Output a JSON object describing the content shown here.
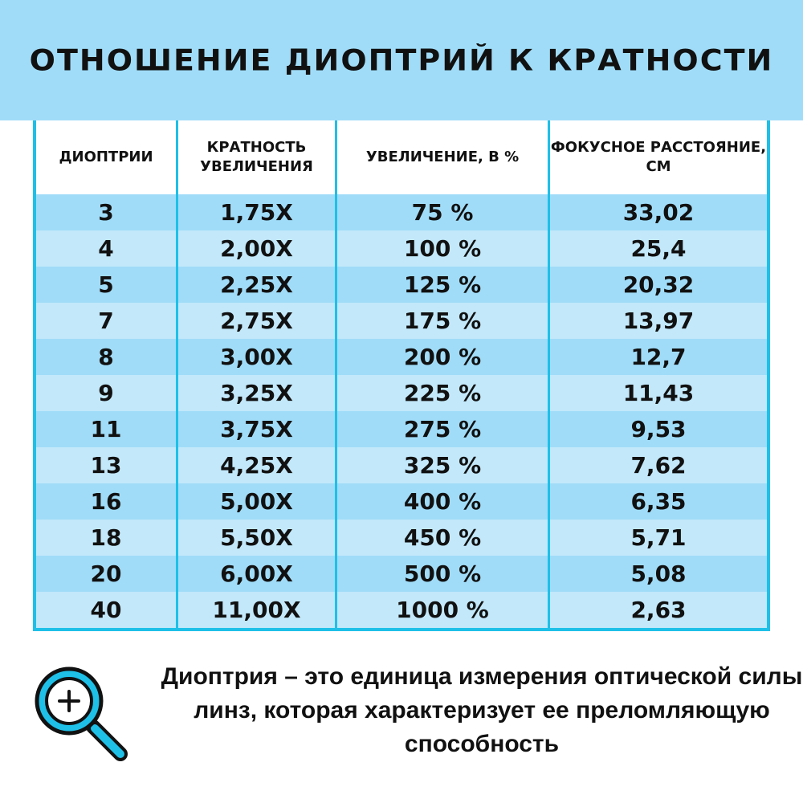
{
  "title": "ОТНОШЕНИЕ ДИОПТРИЙ К КРАТНОСТИ",
  "table": {
    "headers": [
      "ДИОПТРИИ",
      "КРАТНОСТЬ УВЕЛИЧЕНИЯ",
      "УВЕЛИЧЕНИЕ, В %",
      "ФОКУСНОЕ РАССТОЯНИЕ, СМ"
    ],
    "rows": [
      [
        "3",
        "1,75X",
        "75 %",
        "33,02"
      ],
      [
        "4",
        "2,00X",
        "100 %",
        "25,4"
      ],
      [
        "5",
        "2,25X",
        "125 %",
        "20,32"
      ],
      [
        "7",
        "2,75X",
        "175 %",
        "13,97"
      ],
      [
        "8",
        "3,00X",
        "200 %",
        "12,7"
      ],
      [
        "9",
        "3,25X",
        "225 %",
        "11,43"
      ],
      [
        "11",
        "3,75X",
        "275 %",
        "9,53"
      ],
      [
        "13",
        "4,25X",
        "325 %",
        "7,62"
      ],
      [
        "16",
        "5,00X",
        "400 %",
        "6,35"
      ],
      [
        "18",
        "5,50X",
        "450 %",
        "5,71"
      ],
      [
        "20",
        "6,00X",
        "500 %",
        "5,08"
      ],
      [
        "40",
        "11,00X",
        "1000 %",
        "2,63"
      ]
    ]
  },
  "note": "Диоптрия – это единица измерения оптической силы линз, которая характеризует ее преломляющую способность",
  "icon": "magnifier-plus-icon",
  "colors": {
    "banner": "#a0dcf8",
    "border": "#1ec0e8",
    "row_dark": "#a0dcf8",
    "row_light": "#c2e8fa"
  }
}
